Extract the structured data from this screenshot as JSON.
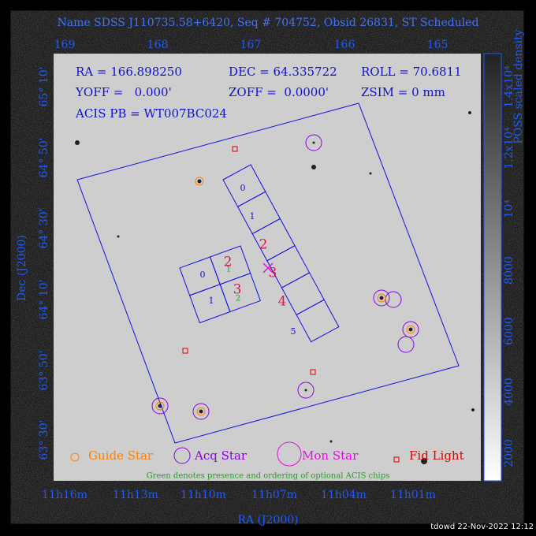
{
  "header": {
    "title": "Name SDSS J110735.58+6420, Seq # 704752, Obsid 26831, ST Scheduled"
  },
  "info": {
    "ra": "RA = 166.898250",
    "dec": "DEC = 64.335722",
    "roll": "ROLL = 70.6811",
    "yoff": "YOFF =   0.000'",
    "zoff": "ZOFF =  0.0000'",
    "zsim": "ZSIM = 0 mm",
    "acis": "ACIS PB = WT007BC024"
  },
  "top_axis": {
    "ticks": [
      "169",
      "168",
      "167",
      "166",
      "165"
    ]
  },
  "bottom_axis": {
    "title": "RA (J2000)",
    "ticks": [
      "11h16m",
      "11h13m",
      "11h10m",
      "11h07m",
      "11h04m",
      "11h01m"
    ]
  },
  "left_axis": {
    "title": "Dec (J2000)",
    "ticks": [
      "65° 10'",
      "64° 50'",
      "64° 30'",
      "64° 10'",
      "63° 50'",
      "63° 30'"
    ]
  },
  "colorbar": {
    "title": "POSS scaled density",
    "ticks": [
      "2000",
      "4000",
      "6000",
      "8000",
      "10⁴",
      "1.2x10⁴",
      "1.4x10⁴"
    ]
  },
  "s_chips": [
    "0",
    "1",
    "2",
    "3",
    "4",
    "5"
  ],
  "i_chips": [
    "0",
    "2",
    "1",
    "3"
  ],
  "optional_order": [
    "1",
    "2"
  ],
  "legend": {
    "guide": "Guide Star",
    "acq": "Acq Star",
    "mon": "Mon Star",
    "fid": "Fid Light",
    "note": "Green denotes presence and ordering of optional ACIS chips"
  },
  "footer": "tdowd 22-Nov-2022 12:12"
}
